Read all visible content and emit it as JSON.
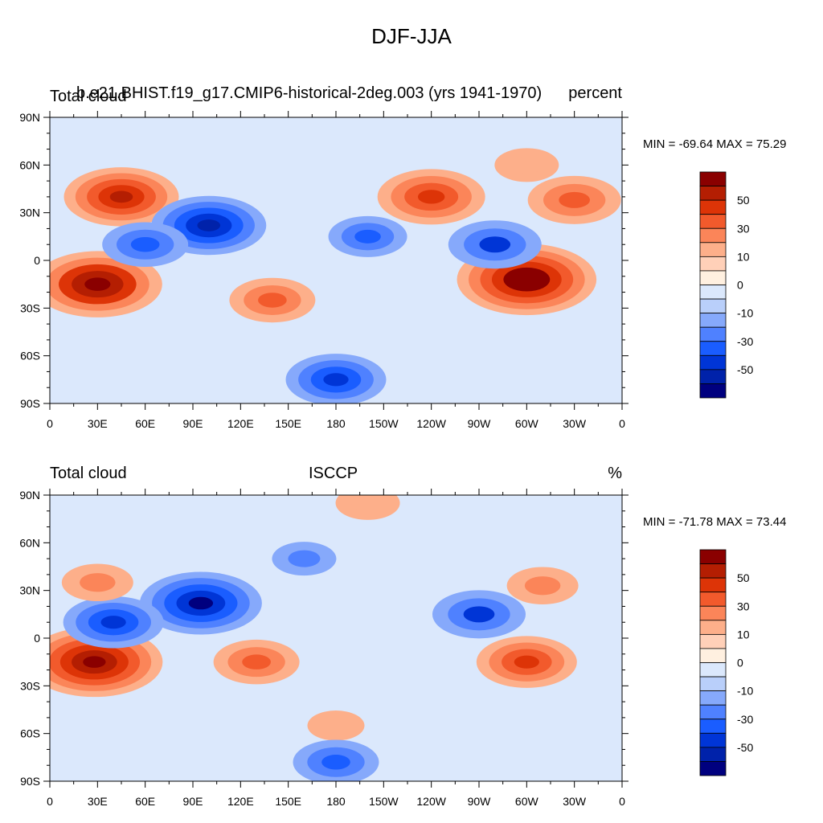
{
  "title": "DJF-JJA",
  "chart_data": [
    {
      "type": "heatmap",
      "variable": "Total cloud",
      "case": "b.e21.BHIST.f19_g17.CMIP6-historical-2deg.003 (yrs 1941-1970)",
      "units": "percent",
      "min_label": "MIN = -69.64 MAX =  75.29",
      "min": -69.64,
      "max": 75.29,
      "xlim": [
        0,
        360
      ],
      "ylim": [
        -90,
        90
      ],
      "x_ticks": [
        "0",
        "30E",
        "60E",
        "90E",
        "120E",
        "150E",
        "180",
        "150W",
        "120W",
        "90W",
        "60W",
        "30W",
        "0"
      ],
      "y_ticks": [
        "90N",
        "60N",
        "30N",
        "0",
        "30S",
        "60S",
        "90S"
      ],
      "colorbar_labels": [
        "50",
        "30",
        "10",
        "0",
        "-10",
        "-30",
        "-50"
      ],
      "features": [
        {
          "lon": 30,
          "lat": -15,
          "value": 65
        },
        {
          "lon": 300,
          "lat": -12,
          "value": 72
        },
        {
          "lon": 45,
          "lat": 40,
          "value": 55
        },
        {
          "lon": 100,
          "lat": 22,
          "value": -55
        },
        {
          "lon": 240,
          "lat": 40,
          "value": 50
        },
        {
          "lon": 280,
          "lat": 10,
          "value": -40
        },
        {
          "lon": 140,
          "lat": -25,
          "value": 35
        },
        {
          "lon": 60,
          "lat": 10,
          "value": -35
        },
        {
          "lon": 200,
          "lat": 15,
          "value": -30
        },
        {
          "lon": 330,
          "lat": 38,
          "value": 40
        },
        {
          "lon": 300,
          "lat": 60,
          "value": 20
        },
        {
          "lon": 180,
          "lat": -75,
          "value": -45
        }
      ]
    },
    {
      "type": "heatmap",
      "variable": "Total cloud",
      "case": "ISCCP",
      "units": "%",
      "min_label": "MIN = -71.78 MAX =  73.44",
      "min": -71.78,
      "max": 73.44,
      "xlim": [
        0,
        360
      ],
      "ylim": [
        -90,
        90
      ],
      "x_ticks": [
        "0",
        "30E",
        "60E",
        "90E",
        "120E",
        "150E",
        "180",
        "150W",
        "120W",
        "90W",
        "60W",
        "30W",
        "0"
      ],
      "y_ticks": [
        "90N",
        "60N",
        "30N",
        "0",
        "30S",
        "60S",
        "90S"
      ],
      "colorbar_labels": [
        "50",
        "30",
        "10",
        "0",
        "-10",
        "-30",
        "-50"
      ],
      "features": [
        {
          "lon": 28,
          "lat": -15,
          "value": 70
        },
        {
          "lon": 300,
          "lat": -15,
          "value": 45
        },
        {
          "lon": 95,
          "lat": 22,
          "value": -60
        },
        {
          "lon": 40,
          "lat": 10,
          "value": -45
        },
        {
          "lon": 130,
          "lat": -15,
          "value": 35
        },
        {
          "lon": 30,
          "lat": 35,
          "value": 25
        },
        {
          "lon": 270,
          "lat": 15,
          "value": -40
        },
        {
          "lon": 310,
          "lat": 33,
          "value": 25
        },
        {
          "lon": 180,
          "lat": -55,
          "value": 15
        },
        {
          "lon": 200,
          "lat": 85,
          "value": 20
        },
        {
          "lon": 160,
          "lat": 50,
          "value": -20
        },
        {
          "lon": 180,
          "lat": -78,
          "value": -35
        }
      ]
    }
  ],
  "colors": {
    "palette": [
      "#00007f",
      "#0022aa",
      "#0035d6",
      "#1a5dff",
      "#4f81ff",
      "#86a9fb",
      "#b9cffa",
      "#dbe8fc",
      "#fff0e0",
      "#ffd0b8",
      "#fdaf8a",
      "#fb8559",
      "#f25a2c",
      "#dd3407",
      "#b41e02",
      "#8a0000"
    ]
  }
}
